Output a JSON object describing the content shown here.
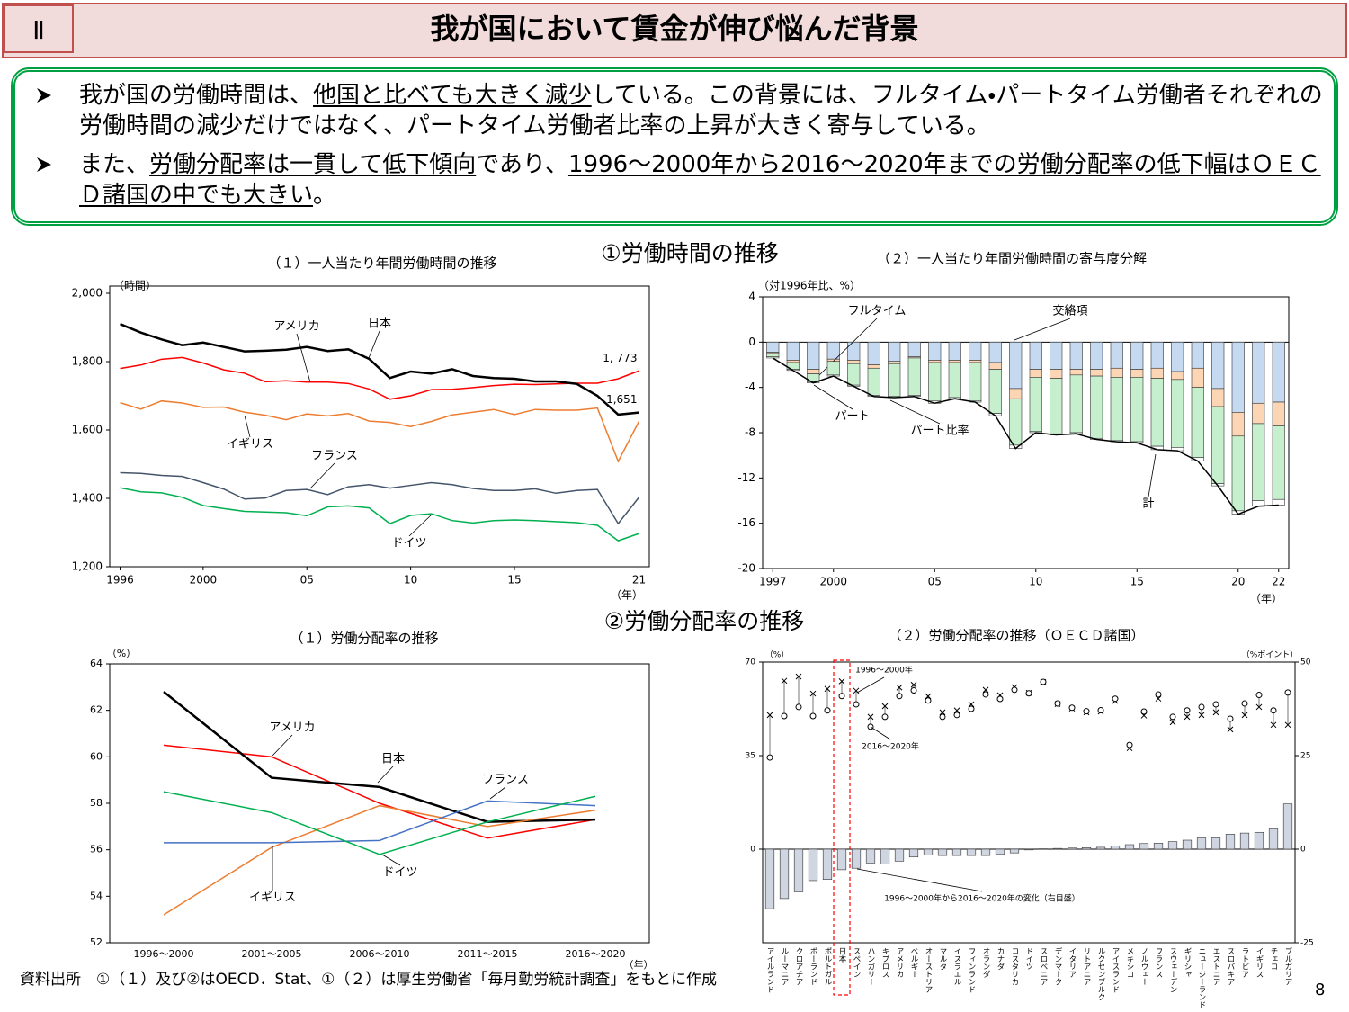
{
  "header": {
    "number": "Ⅱ",
    "title": "我が国において賃金が伸び悩んだ背景"
  },
  "bullets": [
    [
      {
        "text": "我が国の労働時間は、",
        "underline": false
      },
      {
        "text": "他国と比べても大きく減少",
        "underline": true
      },
      {
        "text": "している。この背景には、フルタイム・パートタイム労働者それぞれの労働時間の減少だけではなく、パートタイム労働者比率の上昇が大きく寄与している。",
        "underline": false
      }
    ],
    [
      {
        "text": "また、",
        "underline": false
      },
      {
        "text": "労働分配率は一貫して低下傾向",
        "underline": true
      },
      {
        "text": "であり、",
        "underline": false
      },
      {
        "text": "1996～2000年から2016～2020年までの労働分配率の低下幅はＯＥＣＤ諸国の中でも大きい",
        "underline": true
      },
      {
        "text": "。",
        "underline": false
      }
    ]
  ],
  "sections": [
    "①労働時間の推移",
    "②労働分配率の推移"
  ],
  "chart_data": [
    {
      "type": "line",
      "title": "（１）一人当たり年間労働時間の推移",
      "y_unit": "（時間）",
      "x_unit": "（年）",
      "x": [
        1996,
        1997,
        1998,
        1999,
        2000,
        2001,
        2002,
        2003,
        2004,
        2005,
        2006,
        2007,
        2008,
        2009,
        2010,
        2011,
        2012,
        2013,
        2014,
        2015,
        2016,
        2017,
        2018,
        2019,
        2020,
        2021
      ],
      "xlim": [
        1995.5,
        2021.5
      ],
      "xticks": [
        1996,
        2000,
        {
          "value": 2005,
          "label": "05"
        },
        {
          "value": 2010,
          "label": "10"
        },
        {
          "value": 2015,
          "label": "15"
        },
        {
          "value": 2021,
          "label": "21"
        }
      ],
      "ylim": [
        1200,
        2000
      ],
      "yticks": [
        {
          "value": 1200,
          "label": "1,200"
        },
        {
          "value": 1400,
          "label": "1,400"
        },
        {
          "value": 1600,
          "label": "1,600"
        },
        {
          "value": 1800,
          "label": "1,800"
        },
        {
          "value": 2000,
          "label": "2,000"
        }
      ],
      "series": [
        {
          "name": "アメリカ",
          "color": "#ff0000",
          "values": [
            1780,
            1790,
            1807,
            1812,
            1796,
            1776,
            1766,
            1741,
            1744,
            1740,
            1740,
            1736,
            1720,
            1690,
            1700,
            1718,
            1719,
            1724,
            1730,
            1734,
            1733,
            1735,
            1737,
            1737,
            1750,
            1773
          ],
          "value_labels": [
            null,
            null,
            null,
            null,
            null,
            null,
            null,
            null,
            null,
            null,
            null,
            null,
            null,
            null,
            null,
            null,
            null,
            null,
            null,
            null,
            null,
            null,
            null,
            null,
            null,
            "1, 773"
          ]
        },
        {
          "name": "日本",
          "color": "#000000",
          "line_width": 2.5,
          "values": [
            1910,
            1885,
            1865,
            1848,
            1856,
            1843,
            1830,
            1832,
            1835,
            1843,
            1831,
            1836,
            1808,
            1752,
            1771,
            1765,
            1778,
            1758,
            1752,
            1750,
            1742,
            1742,
            1735,
            1700,
            1645,
            1651
          ],
          "value_labels": [
            null,
            null,
            null,
            null,
            null,
            null,
            null,
            null,
            null,
            null,
            null,
            null,
            null,
            null,
            null,
            null,
            null,
            null,
            null,
            null,
            null,
            null,
            null,
            null,
            null,
            "1,651"
          ]
        },
        {
          "name": "イギリス",
          "color": "#ed7d31",
          "values": [
            1680,
            1661,
            1685,
            1679,
            1666,
            1667,
            1652,
            1643,
            1630,
            1647,
            1641,
            1648,
            1626,
            1622,
            1610,
            1625,
            1644,
            1652,
            1660,
            1645,
            1660,
            1658,
            1658,
            1664,
            1508,
            1625
          ]
        },
        {
          "name": "フランス",
          "color": "#44546a",
          "values": [
            1475,
            1473,
            1467,
            1464,
            1446,
            1427,
            1398,
            1401,
            1423,
            1426,
            1411,
            1434,
            1440,
            1430,
            1438,
            1446,
            1440,
            1429,
            1423,
            1423,
            1428,
            1415,
            1423,
            1426,
            1326,
            1403
          ]
        },
        {
          "name": "ドイツ",
          "color": "#00b050",
          "values": [
            1431,
            1419,
            1416,
            1403,
            1379,
            1370,
            1362,
            1360,
            1358,
            1349,
            1375,
            1378,
            1372,
            1326,
            1350,
            1355,
            1335,
            1328,
            1335,
            1337,
            1335,
            1332,
            1329,
            1321,
            1276,
            1297
          ]
        }
      ]
    },
    {
      "type": "bar",
      "stacked": true,
      "title": "（２）一人当たり年間労働時間の寄与度分解",
      "y_unit": "（対1996年比、%）",
      "x_unit": "（年）",
      "x": [
        1997,
        1998,
        1999,
        2000,
        2001,
        2002,
        2003,
        2004,
        2005,
        2006,
        2007,
        2008,
        2009,
        2010,
        2011,
        2012,
        2013,
        2014,
        2015,
        2016,
        2017,
        2018,
        2019,
        2020,
        2021,
        2022
      ],
      "xlim": [
        1996.5,
        2022.5
      ],
      "xticks": [
        1997,
        2000,
        {
          "value": 2005,
          "label": "05"
        },
        {
          "value": 2010,
          "label": "10"
        },
        {
          "value": 2015,
          "label": "15"
        },
        {
          "value": 2020,
          "label": "20"
        },
        {
          "value": 2022,
          "label": "22"
        }
      ],
      "ylim": [
        -20,
        4
      ],
      "yticks": [
        -20,
        -16,
        -12,
        -8,
        -4,
        0,
        4
      ],
      "series": [
        {
          "name": "交絡項",
          "color": "#c5d9f1",
          "values": [
            -0.9,
            -1.6,
            -2.4,
            -1.5,
            -1.6,
            -2.0,
            -1.7,
            -1.3,
            -1.6,
            -1.6,
            -1.6,
            -1.8,
            -4.1,
            -2.4,
            -2.4,
            -2.4,
            -2.4,
            -2.3,
            -2.4,
            -2.3,
            -2.6,
            -2.3,
            -4.1,
            -6.2,
            -5.4,
            -5.3
          ]
        },
        {
          "name": "フルタイム",
          "color": "#fcd5b4",
          "values": [
            -0.1,
            -0.2,
            -0.4,
            -0.2,
            -0.3,
            -0.3,
            -0.2,
            -0.1,
            -0.2,
            -0.2,
            -0.2,
            -0.6,
            -0.9,
            -0.7,
            -0.8,
            -0.5,
            -0.6,
            -0.8,
            -0.7,
            -0.9,
            -0.7,
            -1.7,
            -1.6,
            -2.1,
            -1.8,
            -2.1
          ]
        },
        {
          "name": "パート比率",
          "color": "#c6efce",
          "values": [
            -0.3,
            -0.6,
            -0.7,
            -1.2,
            -1.9,
            -2.4,
            -2.9,
            -3.3,
            -3.4,
            -3.1,
            -3.4,
            -3.9,
            -4.1,
            -4.8,
            -4.9,
            -5.1,
            -5.5,
            -5.6,
            -5.7,
            -6.0,
            -6.0,
            -6.2,
            -6.8,
            -6.6,
            -6.8,
            -6.5
          ]
        },
        {
          "name": "パート",
          "color": "#ffffff",
          "values": [
            -0.1,
            -0.1,
            -0.1,
            -0.1,
            -0.1,
            -0.1,
            -0.1,
            -0.1,
            -0.2,
            -0.1,
            -0.1,
            -0.2,
            -0.3,
            -0.1,
            -0.1,
            -0.1,
            -0.1,
            -0.1,
            -0.1,
            -0.3,
            -0.3,
            -0.3,
            -0.2,
            -0.3,
            -0.5,
            -0.5
          ]
        },
        {
          "name": "計",
          "type": "line",
          "color": "#000000",
          "values": [
            -1.4,
            -2.5,
            -3.6,
            -3.0,
            -3.9,
            -4.8,
            -4.9,
            -4.8,
            -5.4,
            -5.0,
            -5.3,
            -6.5,
            -9.4,
            -8.0,
            -8.2,
            -8.1,
            -8.6,
            -8.8,
            -8.9,
            -9.5,
            -9.6,
            -10.5,
            -12.7,
            -15.2,
            -14.5,
            -14.4
          ]
        }
      ]
    },
    {
      "type": "line",
      "title": "（１）労働分配率の推移",
      "y_unit": "（%）",
      "x_unit": "（年）",
      "categories": [
        "1996～2000",
        "2001～2005",
        "2006～2010",
        "2011～2015",
        "2016～2020"
      ],
      "ylim": [
        52,
        64
      ],
      "yticks": [
        52,
        54,
        56,
        58,
        60,
        62,
        64
      ],
      "series": [
        {
          "name": "アメリカ",
          "color": "#ff0000",
          "values": [
            60.5,
            60.0,
            58.0,
            56.5,
            57.3
          ]
        },
        {
          "name": "日本",
          "color": "#000000",
          "line_width": 2.5,
          "values": [
            62.8,
            59.1,
            58.7,
            57.2,
            57.3
          ]
        },
        {
          "name": "イギリス",
          "color": "#ed7d31",
          "values": [
            53.2,
            56.1,
            57.9,
            57.0,
            57.7
          ]
        },
        {
          "name": "フランス",
          "color": "#4472c4",
          "values": [
            56.3,
            56.3,
            56.4,
            58.1,
            57.9
          ]
        },
        {
          "name": "ドイツ",
          "color": "#00b050",
          "values": [
            58.5,
            57.6,
            55.8,
            57.2,
            58.3
          ]
        }
      ]
    },
    {
      "type": "scatter",
      "title": "（２）労働分配率の推移（ＯＥＣＤ諸国）",
      "y_unit": "（%）",
      "y2_unit": "（%ポイント）",
      "categories": [
        "アイルランド",
        "ルーマニア",
        "クロアチア",
        "ポーランド",
        "ポルトガル",
        "日本",
        "スペイン",
        "ハンガリー",
        "キプロス",
        "アメリカ",
        "ベルギー",
        "オーストリア",
        "マルタ",
        "イスラエル",
        "フィンランド",
        "オランダ",
        "カナダ",
        "コスタリカ",
        "ドイツ",
        "スロベニア",
        "デンマーク",
        "イタリア",
        "リトアニア",
        "ルクセンブルク",
        "アイスランド",
        "メキシコ",
        "ノルウェー",
        "フランス",
        "スウェーデン",
        "ギリシャ",
        "ニュージーランド",
        "エストニア",
        "スロバキア",
        "ラトビア",
        "イギリス",
        "チェコ",
        "ブルガリア"
      ],
      "ylim": [
        -35,
        70
      ],
      "yticks": [
        0,
        35,
        70
      ],
      "y2lim": [
        -25,
        50
      ],
      "y2ticks": [
        -25,
        0,
        25,
        50
      ],
      "connect": true,
      "highlight": 5,
      "series": [
        {
          "name": "1996～2000年",
          "marker": "x",
          "color": "#000000",
          "values": [
            50.2,
            63.0,
            64.6,
            58.2,
            60.0,
            62.8,
            59.3,
            49.5,
            53.5,
            60.5,
            61.5,
            57.2,
            51.2,
            51.9,
            54.2,
            59.6,
            57.6,
            60.6,
            58.5,
            62.5,
            54.3,
            52.6,
            51.2,
            51.5,
            55.5,
            37.8,
            50.0,
            56.3,
            47.5,
            49.5,
            50.2,
            51.2,
            44.8,
            50.2,
            53.2,
            46.5,
            46.5
          ]
        },
        {
          "name": "2016～2020年",
          "marker": "o",
          "color": "#000000",
          "values": [
            34.3,
            49.8,
            53.2,
            49.8,
            51.9,
            57.3,
            54.2,
            45.8,
            49.5,
            57.3,
            59.4,
            55.6,
            49.5,
            50.2,
            52.5,
            57.9,
            56.2,
            59.6,
            58.3,
            62.6,
            54.5,
            52.9,
            51.6,
            52.0,
            56.3,
            39.0,
            51.5,
            57.9,
            49.5,
            51.9,
            53.2,
            54.2,
            48.8,
            54.5,
            57.7,
            51.9,
            58.6
          ]
        },
        {
          "name": "1996～2000年から2016～2020年の変化（右目盛）",
          "type": "bar",
          "axis": "y2",
          "color": "#cfd6e2",
          "values": [
            -15.9,
            -13.2,
            -11.4,
            -8.4,
            -8.1,
            -5.5,
            -5.1,
            -3.7,
            -4.0,
            -3.2,
            -2.1,
            -1.6,
            -1.7,
            -1.7,
            -1.7,
            -1.7,
            -1.4,
            -1.0,
            -0.2,
            0.1,
            0.2,
            0.3,
            0.4,
            0.5,
            0.8,
            1.2,
            1.5,
            1.6,
            2.0,
            2.4,
            3.0,
            3.0,
            4.0,
            4.3,
            4.5,
            5.4,
            12.1
          ]
        }
      ]
    }
  ],
  "source": "資料出所　①（１）及び②はOECD．Stat、①（２）は厚生労働省「毎月勤労統計調査」をもとに作成",
  "page_number": 8
}
